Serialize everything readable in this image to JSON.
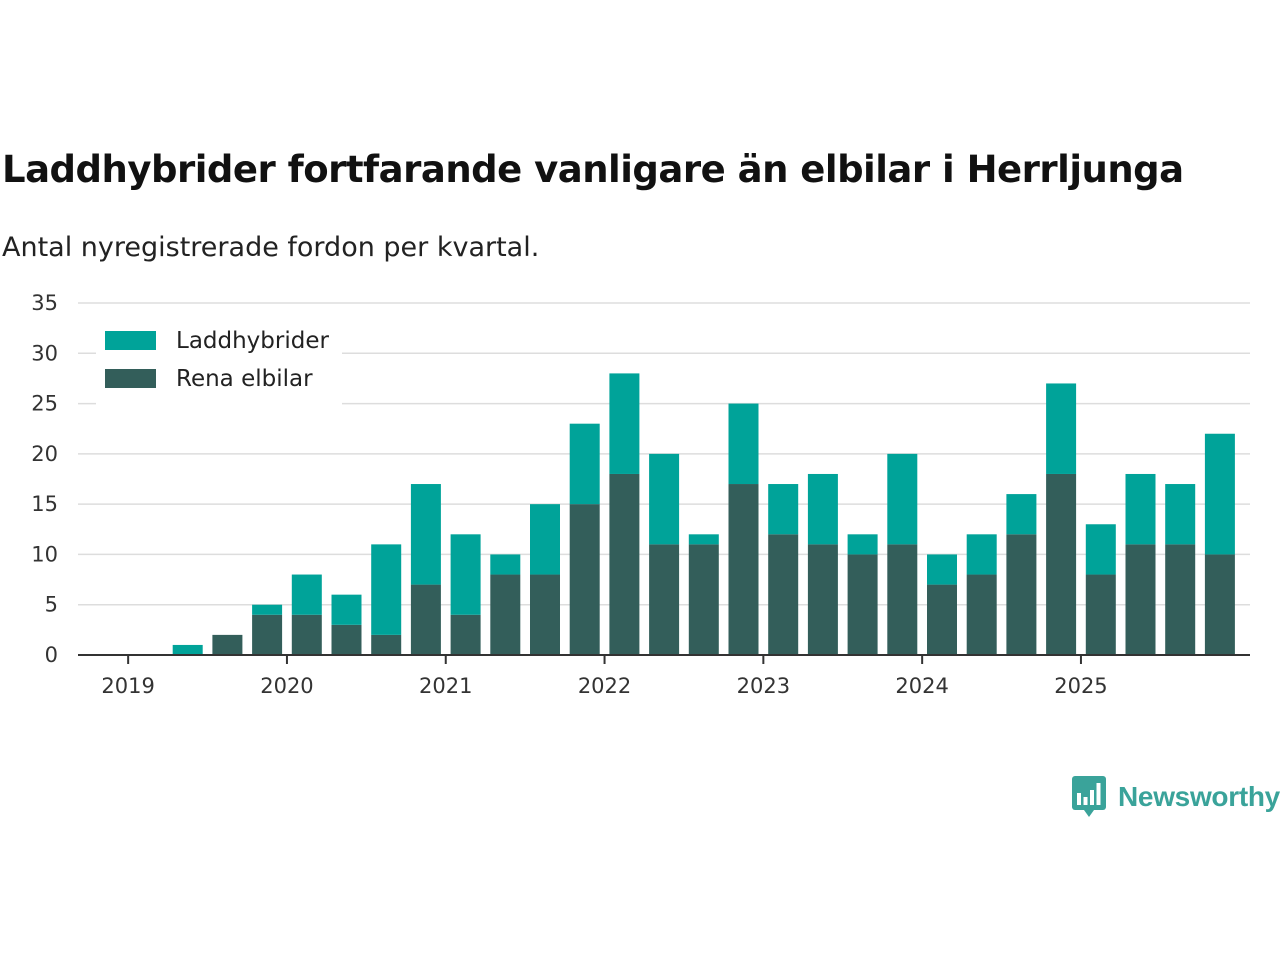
{
  "title": "Laddhybrider fortfarande vanligare än elbilar i Herrljunga",
  "subtitle": "Antal nyregistrerade fordon per kvartal.",
  "brand": {
    "name": "Newsworthy",
    "color": "#3aa39a"
  },
  "colors": {
    "laddhybrider": "#00a399",
    "rena_elbilar": "#335e5a",
    "grid": "#dddddd",
    "axis": "#333333"
  },
  "chart_data": {
    "type": "bar",
    "stacked": true,
    "title": "Laddhybrider fortfarande vanligare än elbilar i Herrljunga",
    "subtitle": "Antal nyregistrerade fordon per kvartal.",
    "xlabel": "",
    "ylabel": "",
    "ylim": [
      0,
      35
    ],
    "yticks": [
      0,
      5,
      10,
      15,
      20,
      25,
      30,
      35
    ],
    "grid": true,
    "legend_position": "top-left",
    "xtick_labels": [
      "2019",
      "2020",
      "2021",
      "2022",
      "2023",
      "2024",
      "2025"
    ],
    "categories": [
      "2019 Q1",
      "2019 Q2",
      "2019 Q3",
      "2019 Q4",
      "2020 Q1",
      "2020 Q2",
      "2020 Q3",
      "2020 Q4",
      "2021 Q1",
      "2021 Q2",
      "2021 Q3",
      "2021 Q4",
      "2022 Q1",
      "2022 Q2",
      "2022 Q3",
      "2022 Q4",
      "2023 Q1",
      "2023 Q2",
      "2023 Q3",
      "2023 Q4",
      "2024 Q1",
      "2024 Q2",
      "2024 Q3",
      "2024 Q4",
      "2025 Q1",
      "2025 Q2",
      "2025 Q3",
      "2025 Q4"
    ],
    "series": [
      {
        "name": "Rena elbilar",
        "values": [
          0,
          0,
          2,
          4,
          4,
          3,
          2,
          7,
          4,
          8,
          8,
          15,
          18,
          11,
          11,
          17,
          12,
          11,
          10,
          11,
          7,
          8,
          12,
          18,
          8,
          11,
          11,
          10
        ]
      },
      {
        "name": "Laddhybrider",
        "values": [
          0,
          1,
          0,
          1,
          4,
          3,
          9,
          10,
          8,
          2,
          7,
          8,
          10,
          9,
          1,
          8,
          5,
          7,
          2,
          9,
          3,
          4,
          4,
          9,
          5,
          7,
          6,
          12
        ]
      }
    ],
    "legend_order": [
      "Laddhybrider",
      "Rena elbilar"
    ]
  }
}
